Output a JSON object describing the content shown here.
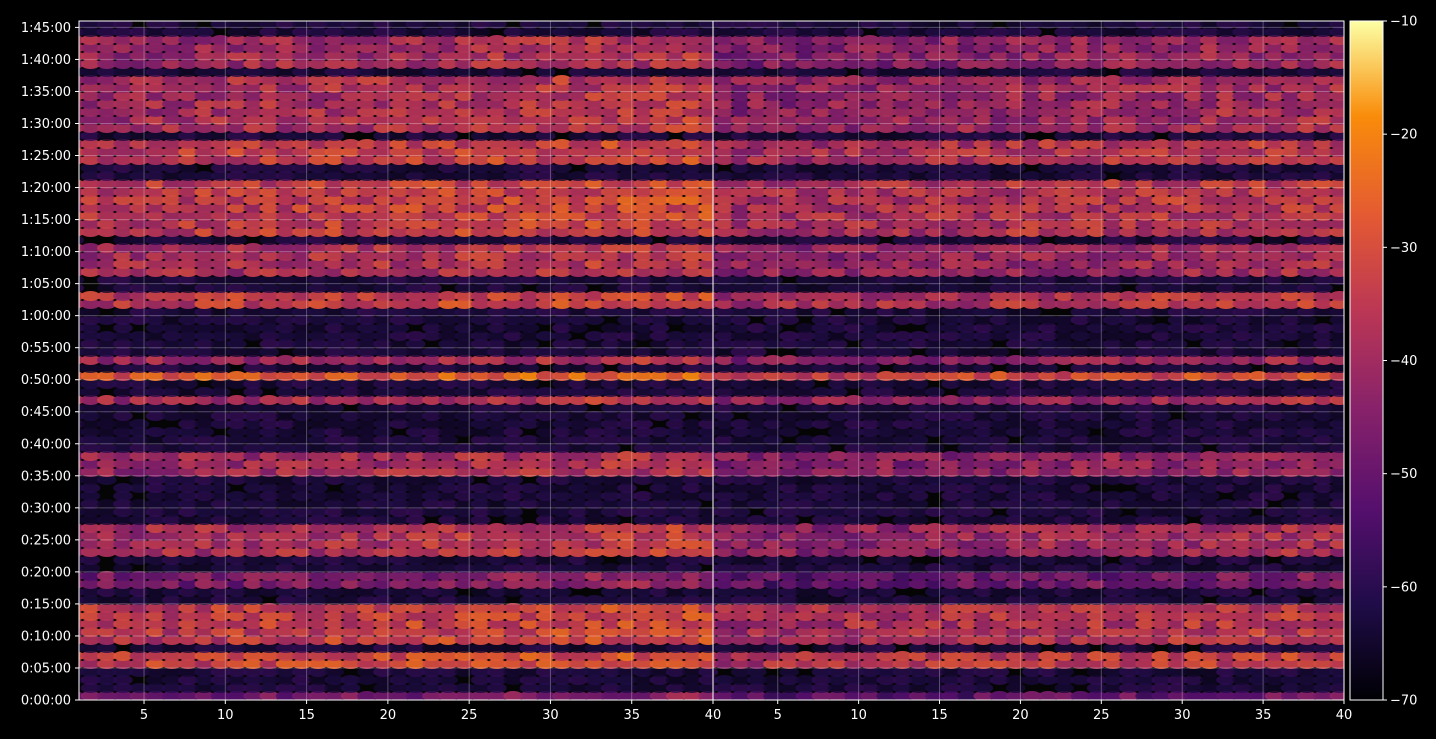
{
  "chart_data": {
    "type": "heatmap",
    "title": "",
    "xlabel": "",
    "ylabel": "",
    "grid": true,
    "colormap": "inferno",
    "background": "#000000",
    "panels": [
      {
        "name": "",
        "xlim": [
          1,
          40
        ],
        "xticks": [
          "5",
          "10",
          "15",
          "20",
          "25",
          "30",
          "35",
          "40"
        ]
      },
      {
        "name": "",
        "xlim": [
          1,
          40
        ],
        "xticks": [
          "5",
          "10",
          "15",
          "20",
          "25",
          "30",
          "35",
          "40"
        ]
      }
    ],
    "ylim_seconds": [
      0,
      6360
    ],
    "yticks": [
      "0:00:00",
      "0:05:00",
      "0:10:00",
      "0:15:00",
      "0:20:00",
      "0:25:00",
      "0:30:00",
      "0:35:00",
      "0:40:00",
      "0:45:00",
      "0:50:00",
      "0:55:00",
      "1:00:00",
      "1:05:00",
      "1:10:00",
      "1:15:00",
      "1:20:00",
      "1:25:00",
      "1:30:00",
      "1:35:00",
      "1:40:00",
      "1:45:00"
    ],
    "colorbar": {
      "range": [
        -70,
        -10
      ],
      "ticks": [
        "−70",
        "−60",
        "−50",
        "−40",
        "−30",
        "−20",
        "−10"
      ]
    },
    "bands": [
      {
        "from": "0:00:00",
        "to": "0:01:30",
        "level_db": -50
      },
      {
        "from": "0:05:00",
        "to": "0:07:00",
        "level_db": -34
      },
      {
        "from": "0:09:00",
        "to": "0:15:00",
        "level_db": -36
      },
      {
        "from": "0:18:00",
        "to": "0:20:00",
        "level_db": -48
      },
      {
        "from": "0:22:00",
        "to": "0:28:00",
        "level_db": -40
      },
      {
        "from": "0:35:00",
        "to": "0:39:00",
        "level_db": -42
      },
      {
        "from": "0:46:00",
        "to": "0:48:00",
        "level_db": -40
      },
      {
        "from": "0:49:30",
        "to": "0:51:00",
        "level_db": -30
      },
      {
        "from": "0:52:00",
        "to": "0:54:00",
        "level_db": -42
      },
      {
        "from": "1:01:00",
        "to": "1:04:00",
        "level_db": -36
      },
      {
        "from": "1:06:00",
        "to": "1:11:00",
        "level_db": -40
      },
      {
        "from": "1:12:00",
        "to": "1:21:00",
        "level_db": -36
      },
      {
        "from": "1:24:00",
        "to": "1:28:00",
        "level_db": -36
      },
      {
        "from": "1:29:00",
        "to": "1:38:00",
        "level_db": -40
      },
      {
        "from": "1:39:00",
        "to": "1:44:00",
        "level_db": -42
      }
    ]
  }
}
